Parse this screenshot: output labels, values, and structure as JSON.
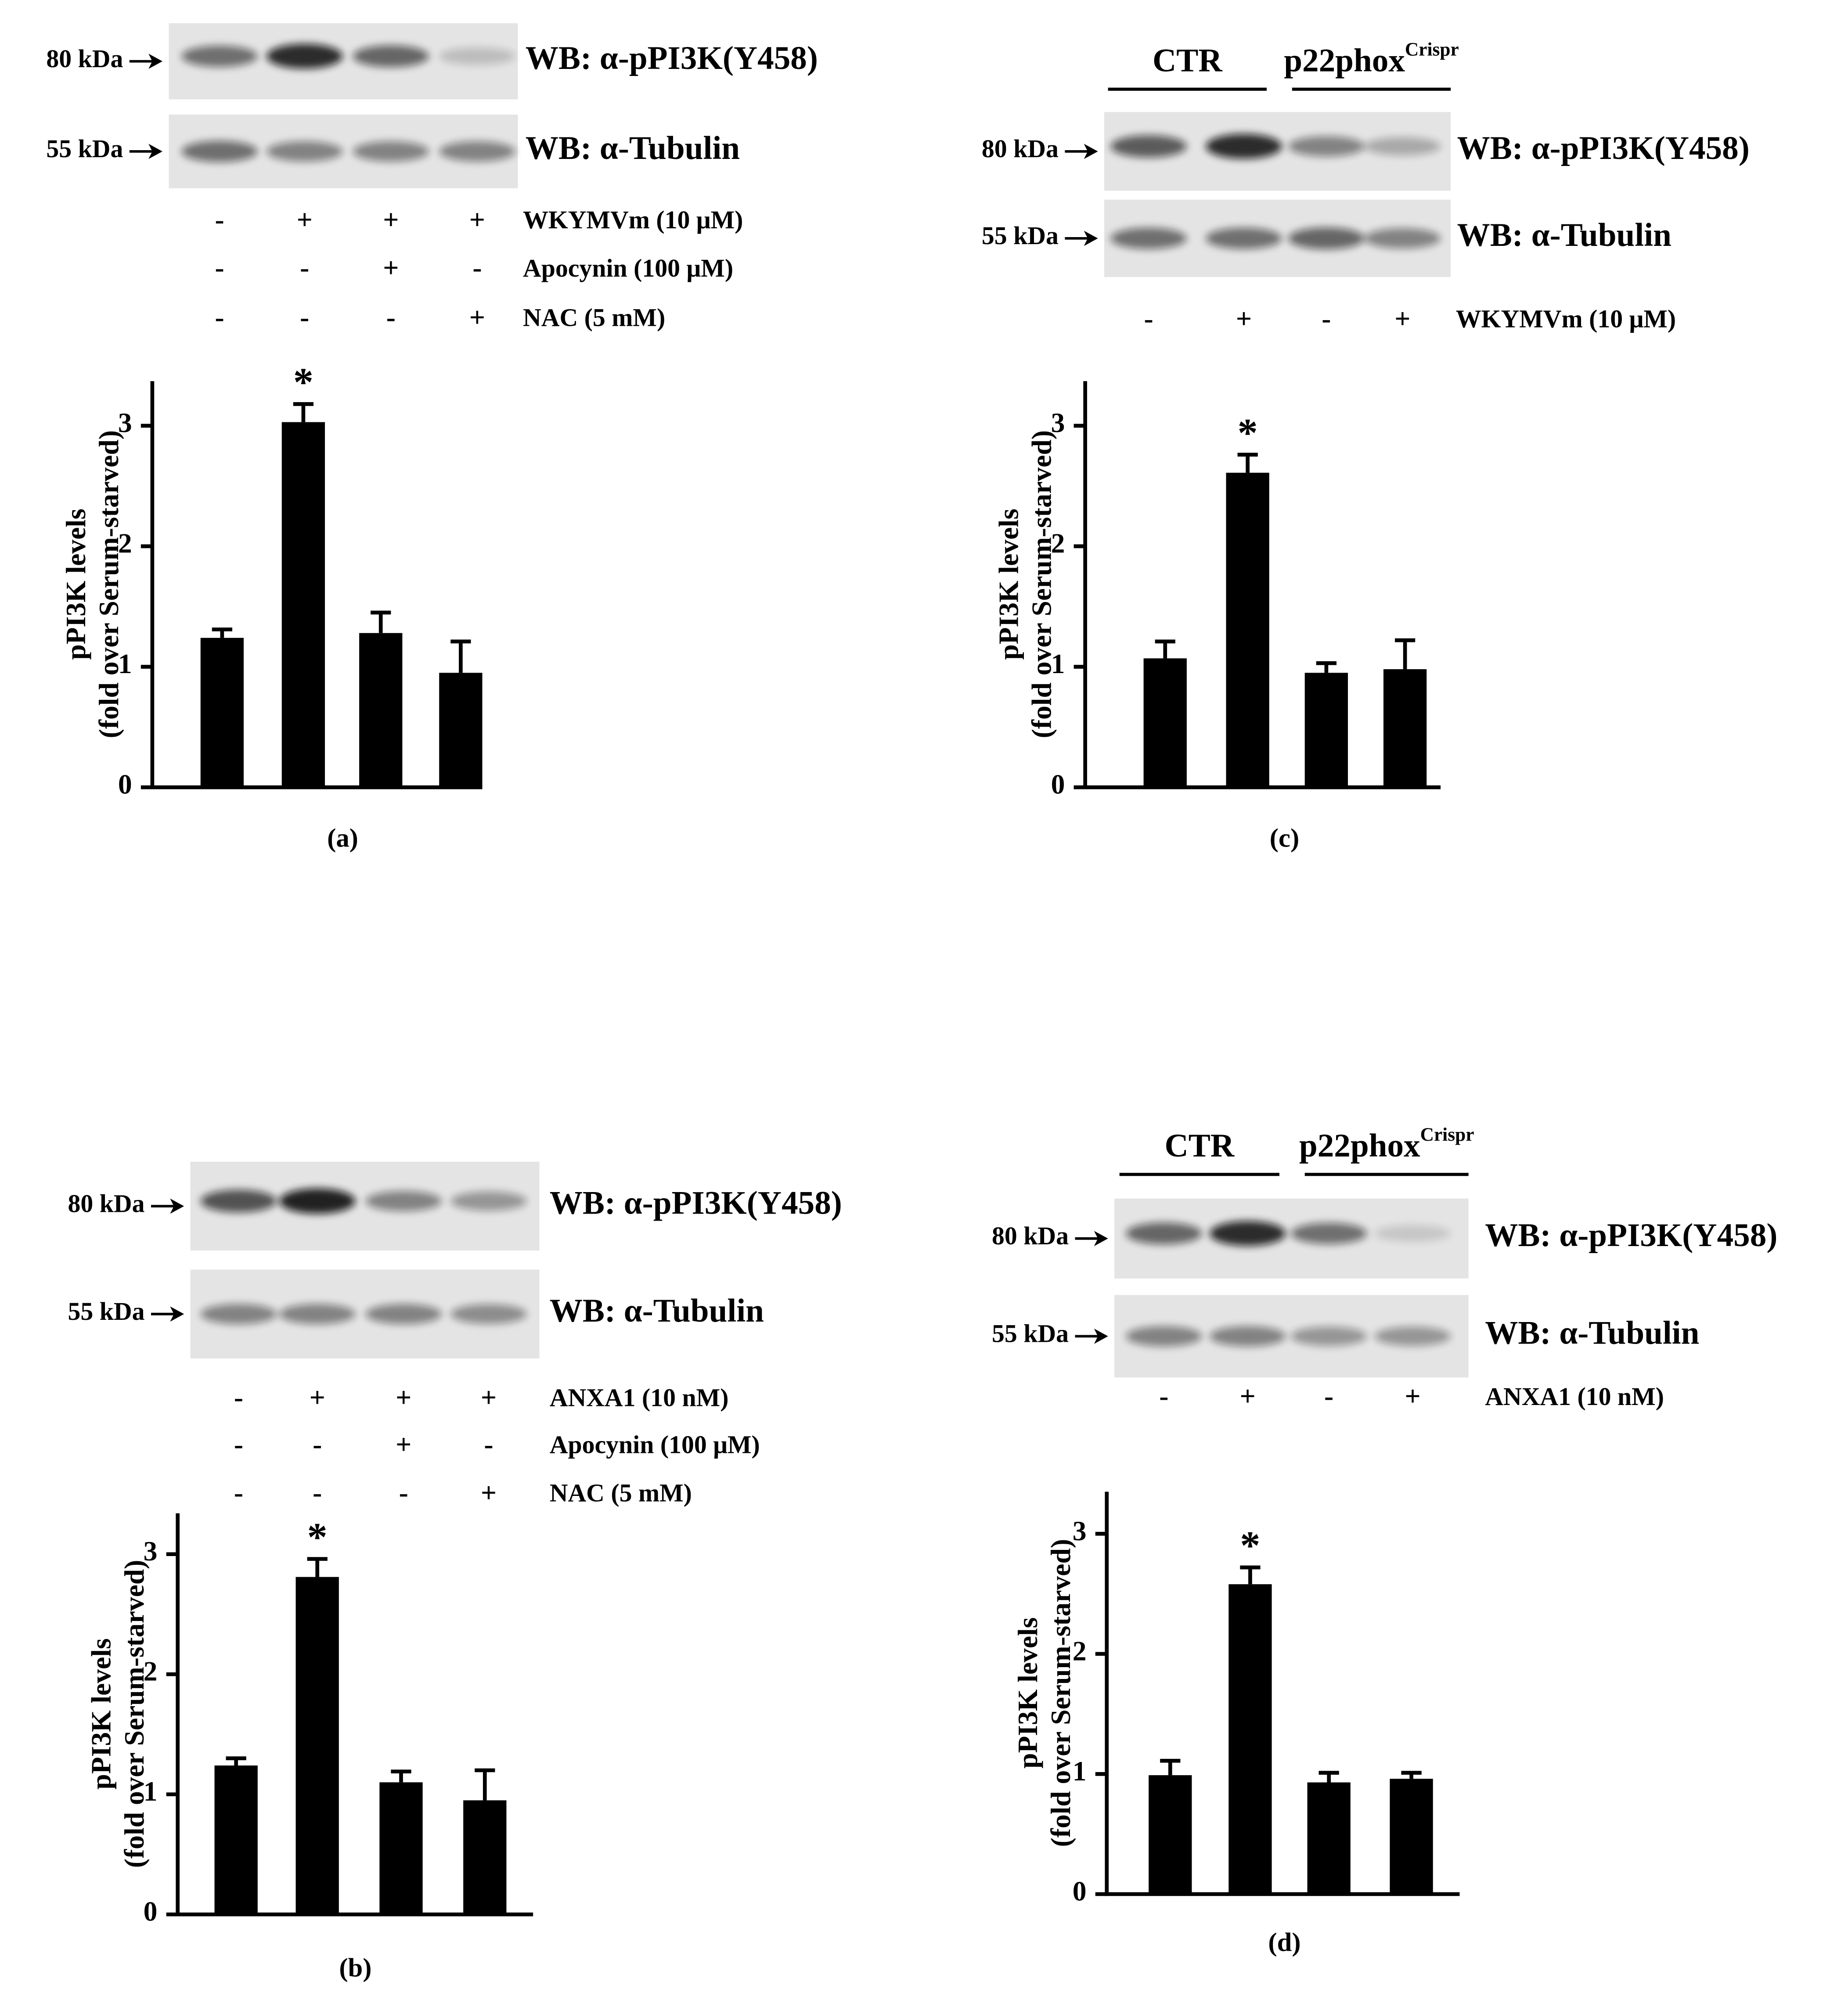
{
  "chart_data": [
    {
      "type": "bar",
      "label": "(a)",
      "ylabel": [
        "pPI3K levels",
        "(fold over Serum-starved)"
      ],
      "categories": [
        null,
        null,
        null,
        null
      ],
      "values": [
        1.24,
        3.03,
        1.28,
        0.95
      ],
      "errors": [
        0.07,
        0.15,
        0.17,
        0.26
      ],
      "annotations": [
        null,
        "*",
        null,
        null
      ],
      "color": "#000000",
      "ylim": [
        0,
        3.37
      ],
      "yticks": [
        0,
        1,
        2,
        3
      ],
      "blot": {
        "markers": [
          "80 kDa",
          "55 kDa"
        ],
        "antibodies": [
          "WB: α-pPI3K(Y458)",
          "WB: α-Tubulin"
        ],
        "treatments": [
          {
            "label": "WKYMVm (10 μM)",
            "signs": [
              "-",
              "+",
              "+",
              "+"
            ]
          },
          {
            "label": "Apocynin (100 μM)",
            "signs": [
              "-",
              "-",
              "+",
              "-"
            ]
          },
          {
            "label": "NAC (5 mM)",
            "signs": [
              "-",
              "-",
              "-",
              "+"
            ]
          }
        ]
      }
    },
    {
      "type": "bar",
      "label": "(b)",
      "ylabel": [
        "pPI3K levels",
        "(fold over Serum-starved)"
      ],
      "categories": [
        null,
        null,
        null,
        null
      ],
      "values": [
        1.24,
        2.81,
        1.1,
        0.95
      ],
      "errors": [
        0.06,
        0.15,
        0.09,
        0.25
      ],
      "annotations": [
        null,
        "*",
        null,
        null
      ],
      "color": "#000000",
      "ylim": [
        0,
        3.34
      ],
      "yticks": [
        0,
        1,
        2,
        3
      ],
      "blot": {
        "markers": [
          "80 kDa",
          "55 kDa"
        ],
        "antibodies": [
          "WB: α-pPI3K(Y458)",
          "WB: α-Tubulin"
        ],
        "treatments": [
          {
            "label": "ANXA1 (10 nM)",
            "signs": [
              "-",
              "+",
              "+",
              "+"
            ]
          },
          {
            "label": "Apocynin (100 μM)",
            "signs": [
              "-",
              "-",
              "+",
              "-"
            ]
          },
          {
            "label": "NAC (5 mM)",
            "signs": [
              "-",
              "-",
              "-",
              "+"
            ]
          }
        ]
      }
    },
    {
      "type": "bar",
      "label": "(c)",
      "ylabel": [
        "pPI3K levels",
        "(fold over Serum-starved)"
      ],
      "categories": [
        null,
        null,
        null,
        null
      ],
      "values": [
        1.07,
        2.61,
        0.95,
        0.98
      ],
      "errors": [
        0.14,
        0.15,
        0.08,
        0.24
      ],
      "annotations": [
        null,
        "*",
        null,
        null
      ],
      "color": "#000000",
      "ylim": [
        0,
        3.37
      ],
      "yticks": [
        0,
        1,
        2,
        3
      ],
      "blot": {
        "groups": [
          {
            "label": "CTR"
          },
          {
            "label": "p22phox",
            "sup": "Crispr"
          }
        ],
        "markers": [
          "80 kDa",
          "55 kDa"
        ],
        "antibodies": [
          "WB: α-pPI3K(Y458)",
          "WB: α-Tubulin"
        ],
        "treatments": [
          {
            "label": "WKYMVm (10 μM)",
            "signs": [
              "-",
              "+",
              "-",
              "+"
            ]
          }
        ]
      }
    },
    {
      "type": "bar",
      "label": "(d)",
      "ylabel": [
        "pPI3K levels",
        "(fold over Serum-starved)"
      ],
      "categories": [
        null,
        null,
        null,
        null
      ],
      "values": [
        0.99,
        2.58,
        0.93,
        0.96
      ],
      "errors": [
        0.12,
        0.14,
        0.08,
        0.05
      ],
      "annotations": [
        null,
        "*",
        null,
        null
      ],
      "color": "#000000",
      "ylim": [
        0,
        3.35
      ],
      "yticks": [
        0,
        1,
        2,
        3
      ],
      "blot": {
        "groups": [
          {
            "label": "CTR"
          },
          {
            "label": "p22phox",
            "sup": "Crispr"
          }
        ],
        "markers": [
          "80 kDa",
          "55 kDa"
        ],
        "antibodies": [
          "WB: α-pPI3K(Y458)",
          "WB: α-Tubulin"
        ],
        "treatments": [
          {
            "label": "ANXA1 (10 nM)",
            "signs": [
              "-",
              "+",
              "-",
              "+"
            ]
          }
        ]
      }
    }
  ]
}
